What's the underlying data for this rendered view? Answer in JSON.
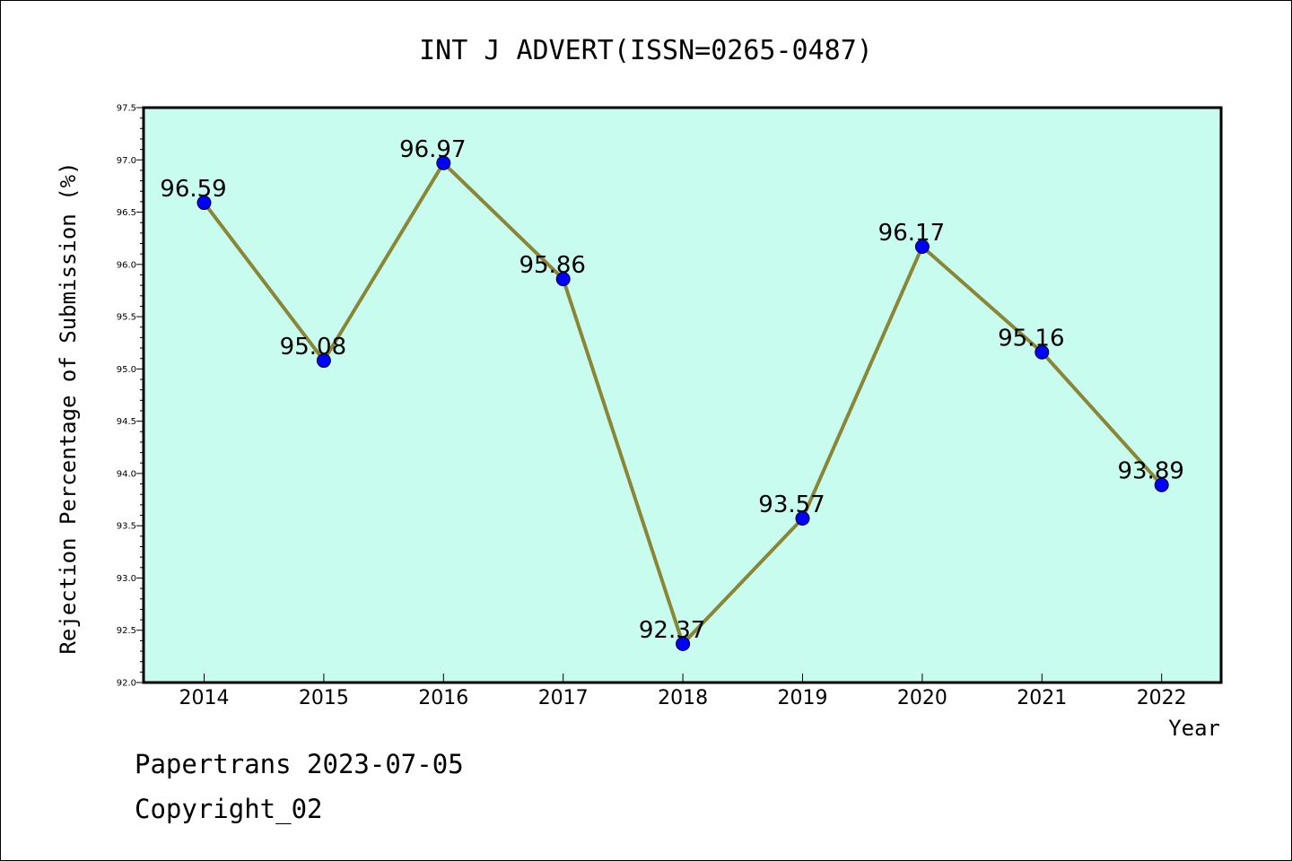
{
  "chart_data": {
    "type": "line",
    "title": "INT J ADVERT(ISSN=0265-0487)",
    "xlabel": "Year",
    "ylabel": "Rejection Percentage of Submission (%)",
    "categories": [
      "2014",
      "2015",
      "2016",
      "2017",
      "2018",
      "2019",
      "2020",
      "2021",
      "2022"
    ],
    "values": [
      96.59,
      95.08,
      96.97,
      95.86,
      92.37,
      93.57,
      96.17,
      95.16,
      93.89
    ],
    "data_labels": [
      "96.59",
      "95.08",
      "96.97",
      "95.86",
      "92.37",
      "93.57",
      "96.17",
      "95.16",
      "93.89"
    ],
    "ylim": [
      92.0,
      97.5
    ],
    "yticks": [
      "92.0",
      "92.5",
      "93.0",
      "93.5",
      "94.0",
      "94.5",
      "95.0",
      "95.5",
      "96.0",
      "96.5",
      "97.0",
      "97.5"
    ],
    "grid": false,
    "colors": {
      "plot_background": "#c8fcee",
      "line": "#8b8536",
      "marker": "#0000ff"
    }
  },
  "footer": {
    "line1": "Papertrans 2023-07-05",
    "line2": "Copyright_02"
  }
}
